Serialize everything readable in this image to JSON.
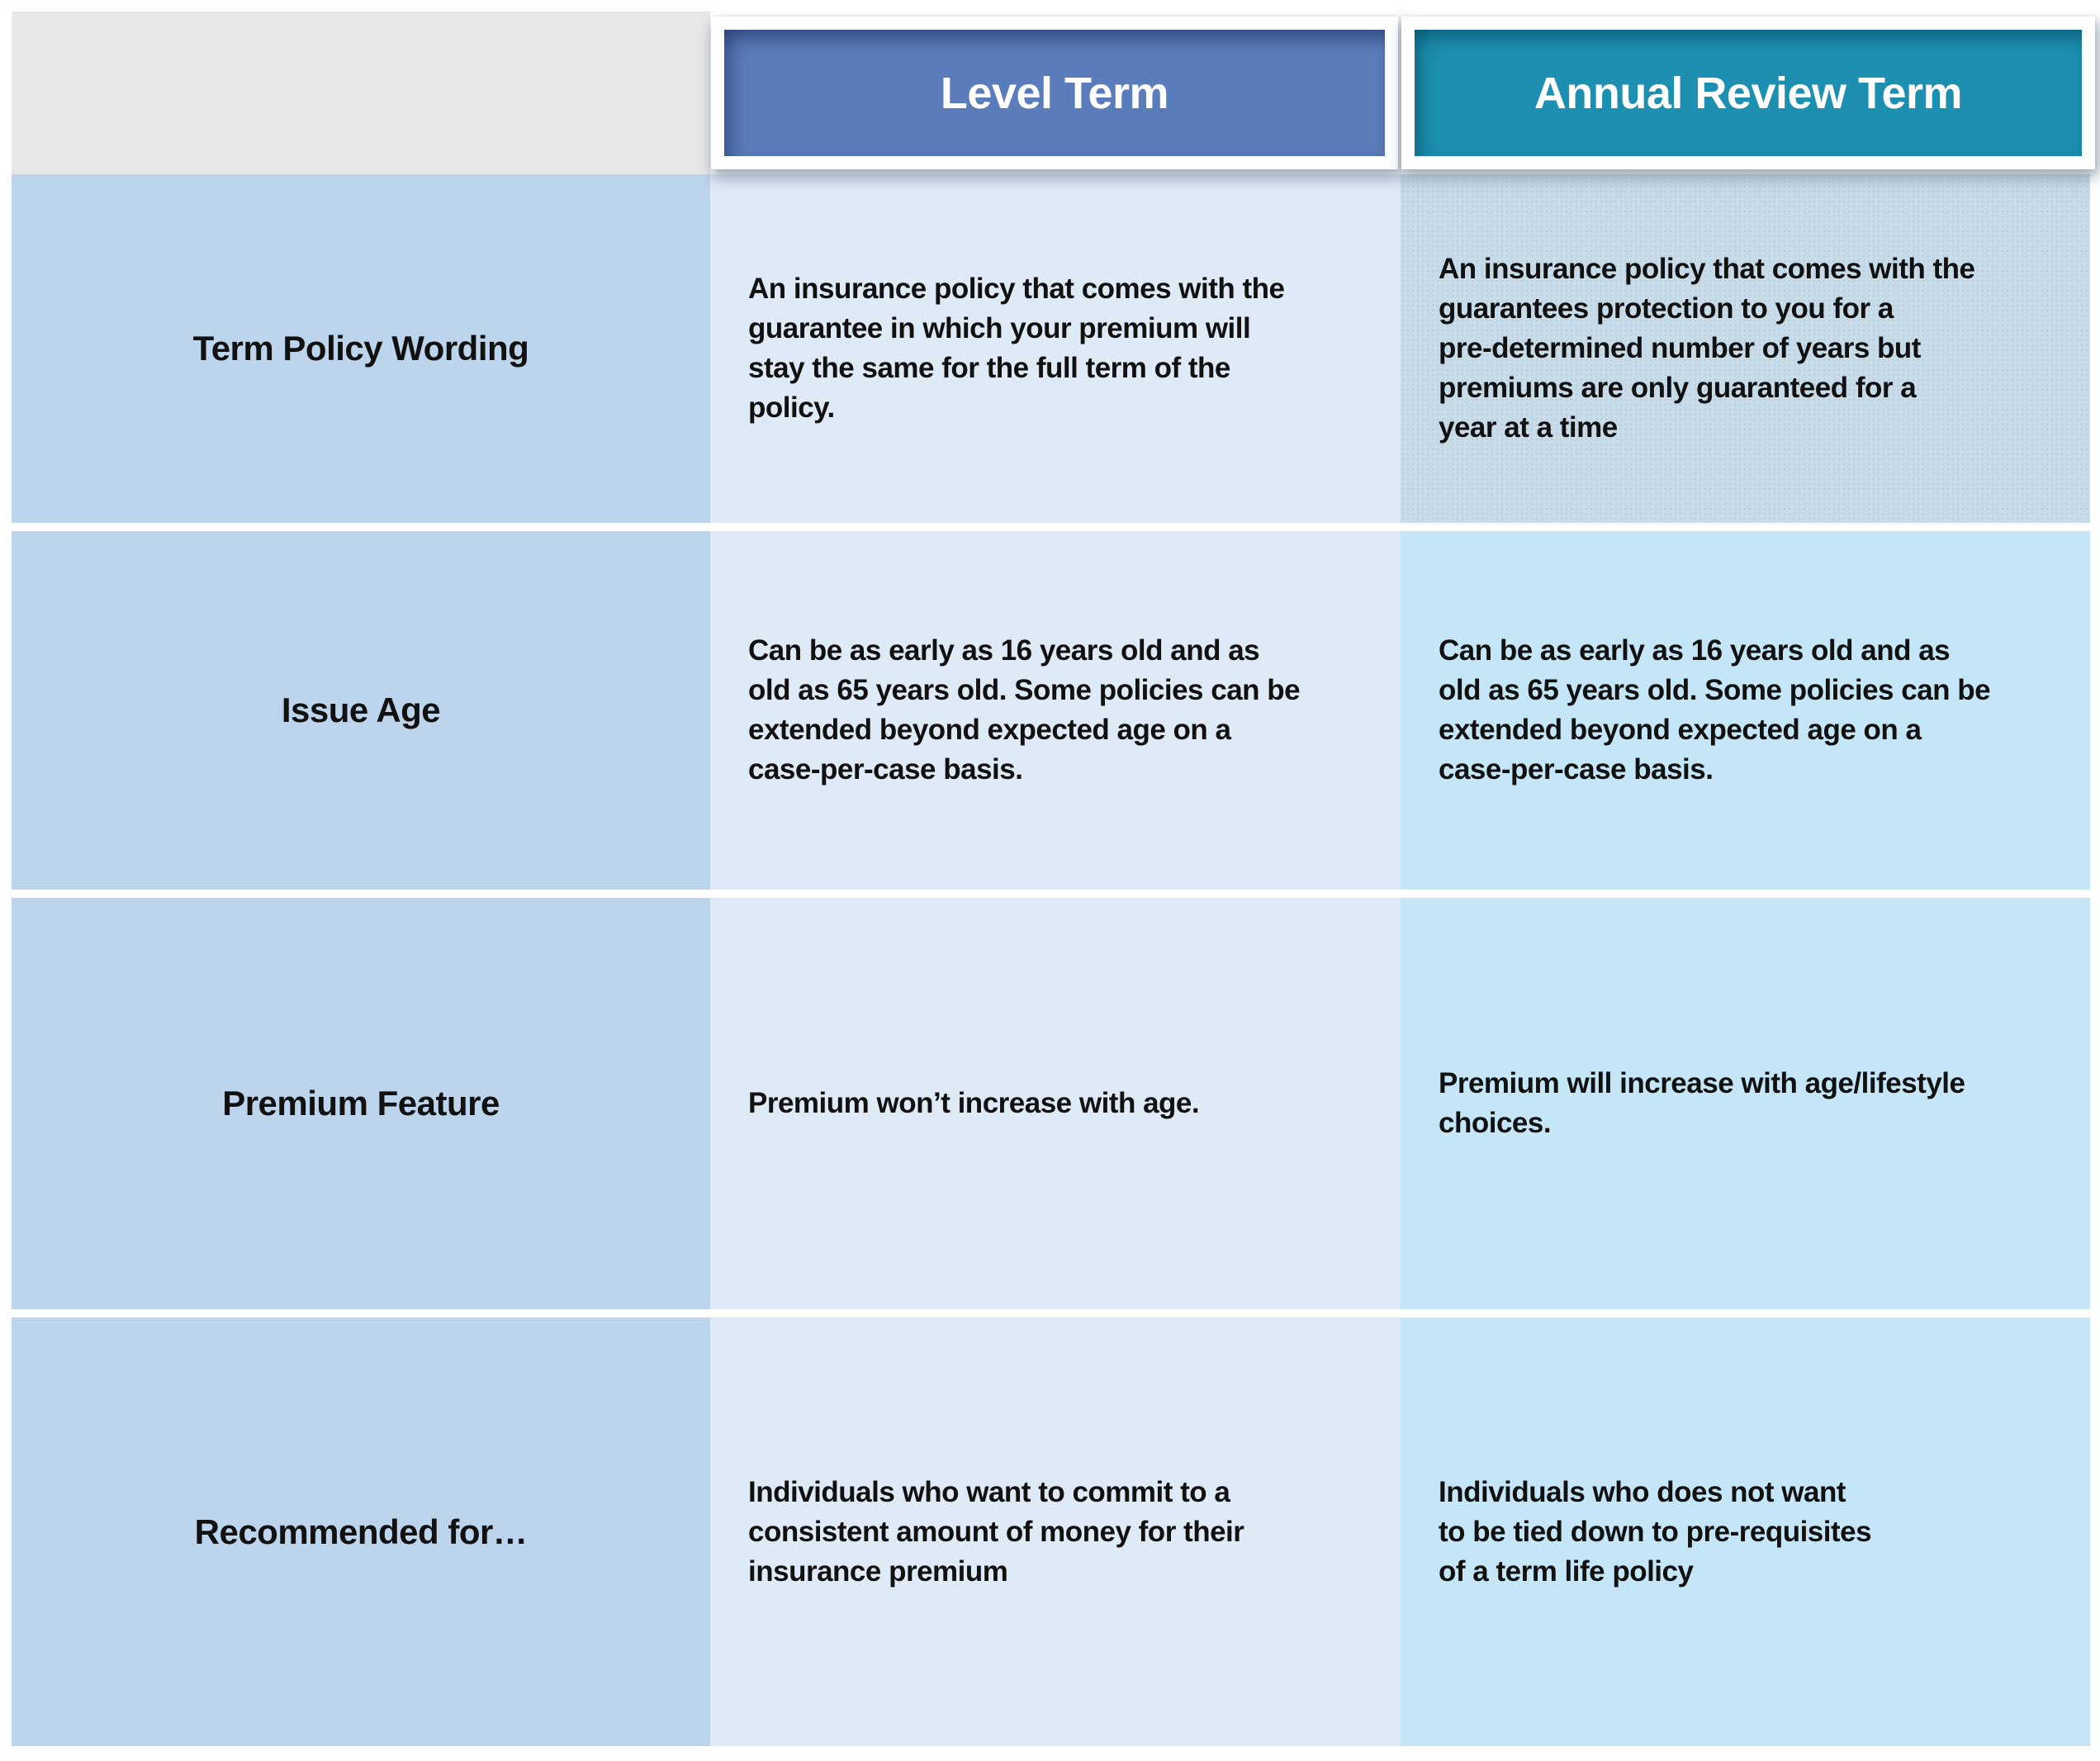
{
  "table": {
    "column_headers": [
      {
        "label": "Level Term",
        "color": "#5b7cba",
        "edge_color": "#3f5d9e"
      },
      {
        "label": "Annual Review Term",
        "color": "#1d8fb0",
        "edge_color": "#0d7494"
      }
    ],
    "rows": [
      {
        "label": "Term Policy Wording",
        "level_term": "An insurance policy that comes with the\nguarantee in which your premium will\nstay the same for the full term of the\npolicy.",
        "annual_review_term": "An insurance policy that comes with the\nguarantees protection to you for a\npre-determined number of years but\npremiums are only guaranteed for a\nyear at a time"
      },
      {
        "label": "Issue Age",
        "level_term": "Can be as early as 16 years old and as\nold as 65 years old. Some policies can be\nextended beyond expected age on a\ncase-per-case basis.",
        "annual_review_term": "Can be as early as 16 years old and as\nold as 65 years old. Some policies can be\nextended beyond expected age on a\ncase-per-case basis."
      },
      {
        "label": "Premium Feature",
        "level_term": "Premium won’t increase with age.",
        "annual_review_term": "Premium will increase with age/lifestyle\nchoices."
      },
      {
        "label": "Recommended for…",
        "level_term": "Individuals who want to commit to a\nconsistent amount of money for their\ninsurance premium",
        "annual_review_term": "Individuals who does not want\nto be tied down to pre-requisites\nof a term life policy"
      }
    ],
    "colors": {
      "corner_bg": "#e7e8e8",
      "row_header_bg": "#bdd5ec",
      "level_term_cell_bg": "#dfeaf7",
      "annual_review_cell_bg": "#c5e6f7",
      "annual_review_first_cell_bg": "#c8dbe9",
      "gridline": "#ffffff",
      "text": "#111111"
    }
  }
}
